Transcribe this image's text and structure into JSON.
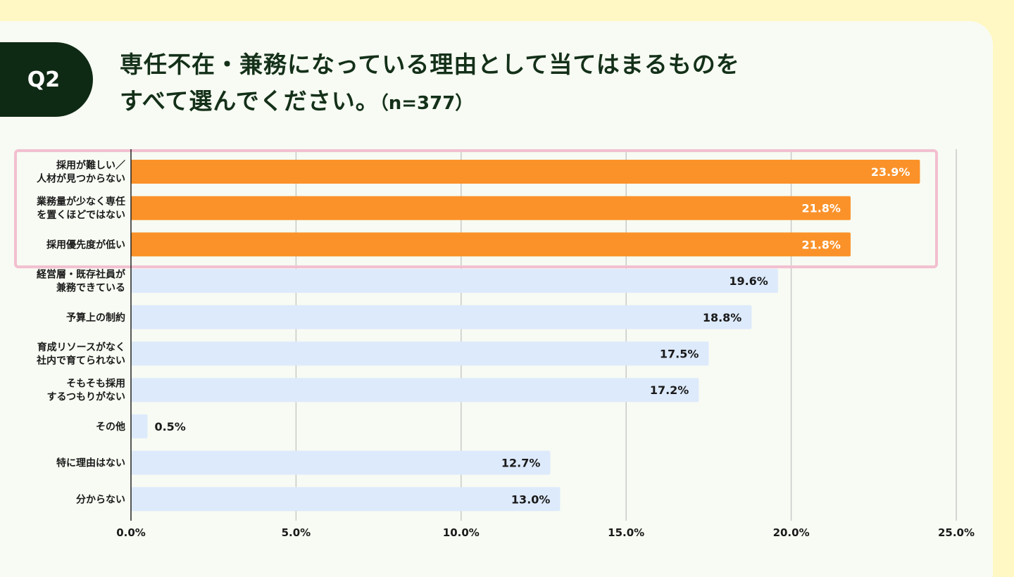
{
  "badge": "Q2",
  "title": {
    "line1": "専任不在・兼務になっている理由として当てはまるものを",
    "line2": "すべて選んでください。",
    "n": "（n=377）"
  },
  "colors": {
    "highlight_bar": "#fb9229",
    "normal_bar": "#ddeafc",
    "highlight_frame": "#f2bfd0",
    "badge_bg": "#0f2a14",
    "title_text": "#143019"
  },
  "chart_data": {
    "type": "bar",
    "orientation": "horizontal",
    "categories": [
      [
        "採用が難しい／",
        "人材が見つからない"
      ],
      [
        "業務量が少なく専任",
        "を置くほどではない"
      ],
      [
        "採用優先度が低い"
      ],
      [
        "経営層・既存社員が",
        "兼務できている"
      ],
      [
        "予算上の制約"
      ],
      [
        "育成リソースがなく",
        "社内で育てられない"
      ],
      [
        "そもそも採用",
        "するつもりがない"
      ],
      [
        "その他"
      ],
      [
        "特に理由はない"
      ],
      [
        "分からない"
      ]
    ],
    "values": [
      23.9,
      21.8,
      21.8,
      19.6,
      18.8,
      17.5,
      17.2,
      0.5,
      12.7,
      13.0
    ],
    "value_labels": [
      "23.9%",
      "21.8%",
      "21.8%",
      "19.6%",
      "18.8%",
      "17.5%",
      "17.2%",
      "0.5%",
      "12.7%",
      "13.0%"
    ],
    "highlighted": [
      true,
      true,
      true,
      false,
      false,
      false,
      false,
      false,
      false,
      false
    ],
    "xlim": [
      0,
      25
    ],
    "xticks": [
      "0.0%",
      "5.0%",
      "10.0%",
      "15.0%",
      "20.0%",
      "25.0%"
    ],
    "xtick_values": [
      0,
      5,
      10,
      15,
      20,
      25
    ],
    "grid": "vertical"
  }
}
